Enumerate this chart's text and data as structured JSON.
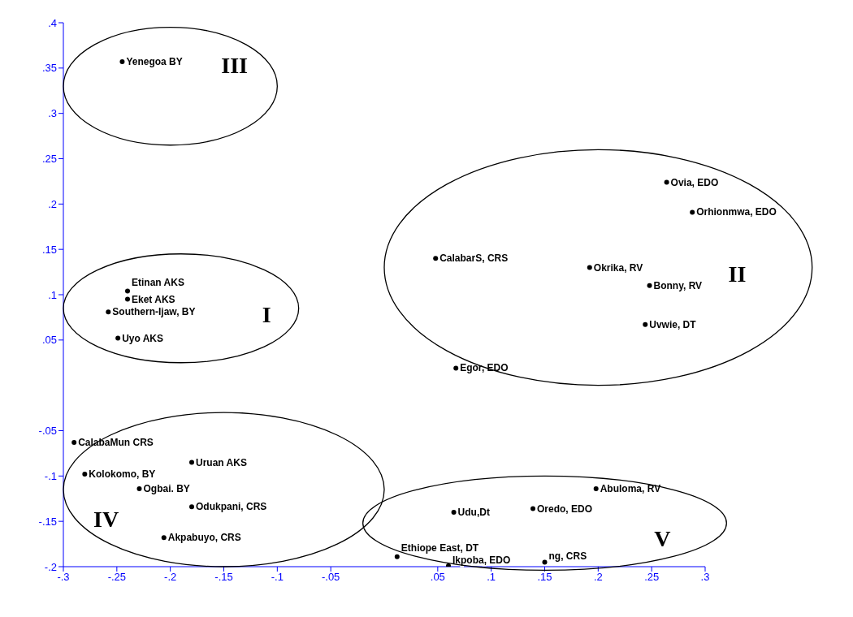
{
  "chart_data": {
    "type": "scatter",
    "xlim": [
      -0.3,
      0.3
    ],
    "xticks": [
      {
        "value": -0.3,
        "label": "-.3"
      },
      {
        "value": -0.25,
        "label": "-.25"
      },
      {
        "value": -0.2,
        "label": "-.2"
      },
      {
        "value": -0.15,
        "label": "-.15"
      },
      {
        "value": -0.1,
        "label": "-.1"
      },
      {
        "value": -0.05,
        "label": "-.05"
      },
      {
        "value": 0.05,
        "label": ".05"
      },
      {
        "value": 0.1,
        "label": ".1"
      },
      {
        "value": 0.15,
        "label": ".15"
      },
      {
        "value": 0.2,
        "label": ".2"
      },
      {
        "value": 0.25,
        "label": ".25"
      },
      {
        "value": 0.3,
        "label": ".3"
      }
    ],
    "ylim": [
      -0.2,
      0.4
    ],
    "yticks": [
      {
        "value": -0.2,
        "label": "-.2"
      },
      {
        "value": -0.15,
        "label": "-.15"
      },
      {
        "value": -0.1,
        "label": "-.1"
      },
      {
        "value": -0.05,
        "label": "-.05"
      },
      {
        "value": 0.05,
        "label": ".05"
      },
      {
        "value": 0.1,
        "label": ".1"
      },
      {
        "value": 0.15,
        "label": ".15"
      },
      {
        "value": 0.2,
        "label": ".2"
      },
      {
        "value": 0.25,
        "label": ".25"
      },
      {
        "value": 0.3,
        "label": ".3"
      },
      {
        "value": 0.35,
        "label": ".35"
      },
      {
        "value": 0.4,
        "label": ".4"
      }
    ],
    "grid": false,
    "legend": false,
    "marker": "circle",
    "annotations": [
      "III",
      "I",
      "II",
      "IV",
      "V"
    ],
    "series": [
      {
        "name": "Yenegoa BY",
        "color": "#000000",
        "x": [
          -0.245
        ],
        "values": [
          0.357
        ]
      },
      {
        "name": "Etinan AKS",
        "color": "#000000",
        "x": [
          -0.24
        ],
        "values": [
          0.104
        ]
      },
      {
        "name": "Eket AKS",
        "color": "#000000",
        "x": [
          -0.24
        ],
        "values": [
          0.095
        ]
      },
      {
        "name": "Southern-Ijaw, BY",
        "color": "#000000",
        "x": [
          -0.258
        ],
        "values": [
          0.081
        ]
      },
      {
        "name": "Uyo AKS",
        "color": "#000000",
        "x": [
          -0.249
        ],
        "values": [
          0.052
        ]
      },
      {
        "name": "Ovia, EDO",
        "color": "#000000",
        "x": [
          0.264
        ],
        "values": [
          0.224
        ]
      },
      {
        "name": "Orhionmwa, EDO",
        "color": "#000000",
        "x": [
          0.288
        ],
        "values": [
          0.191
        ]
      },
      {
        "name": "CalabarS, CRS",
        "color": "#000000",
        "x": [
          0.048
        ],
        "values": [
          0.14
        ]
      },
      {
        "name": "Okrika, RV",
        "color": "#000000",
        "x": [
          0.192
        ],
        "values": [
          0.13
        ]
      },
      {
        "name": "Bonny, RV",
        "color": "#000000",
        "x": [
          0.248
        ],
        "values": [
          0.11
        ]
      },
      {
        "name": "Uvwie, DT",
        "color": "#000000",
        "x": [
          0.244
        ],
        "values": [
          0.067
        ]
      },
      {
        "name": "Egor, EDO",
        "color": "#000000",
        "x": [
          0.067
        ],
        "values": [
          0.019
        ]
      },
      {
        "name": "CalabaMun CRS",
        "color": "#000000",
        "x": [
          -0.29
        ],
        "values": [
          -0.063
        ]
      },
      {
        "name": "Kolokomo, BY",
        "color": "#000000",
        "x": [
          -0.28
        ],
        "values": [
          -0.098
        ]
      },
      {
        "name": "Uruan AKS",
        "color": "#000000",
        "x": [
          -0.18
        ],
        "values": [
          -0.085
        ]
      },
      {
        "name": "Ogbai. BY",
        "color": "#000000",
        "x": [
          -0.229
        ],
        "values": [
          -0.114
        ]
      },
      {
        "name": "Odukpani, CRS",
        "color": "#000000",
        "x": [
          -0.18
        ],
        "values": [
          -0.134
        ]
      },
      {
        "name": "Akpabuyo, CRS",
        "color": "#000000",
        "x": [
          -0.206
        ],
        "values": [
          -0.168
        ]
      },
      {
        "name": "Abuloma, RV",
        "color": "#000000",
        "x": [
          0.198
        ],
        "values": [
          -0.114
        ]
      },
      {
        "name": "Oredo, EDO",
        "color": "#000000",
        "x": [
          0.139
        ],
        "values": [
          -0.136
        ]
      },
      {
        "name": "Udu,Dt",
        "color": "#000000",
        "x": [
          0.065
        ],
        "values": [
          -0.14
        ]
      },
      {
        "name": "Ethiope East, DT",
        "color": "#000000",
        "x": [
          0.012
        ],
        "values": [
          -0.189
        ]
      },
      {
        "name": "Ikpoba, EDO",
        "color": "#000000",
        "x": [
          0.06
        ],
        "values": [
          -0.199
        ]
      },
      {
        "name": "ng, CRS",
        "color": "#000000",
        "x": [
          0.15
        ],
        "values": [
          -0.195
        ]
      }
    ]
  }
}
